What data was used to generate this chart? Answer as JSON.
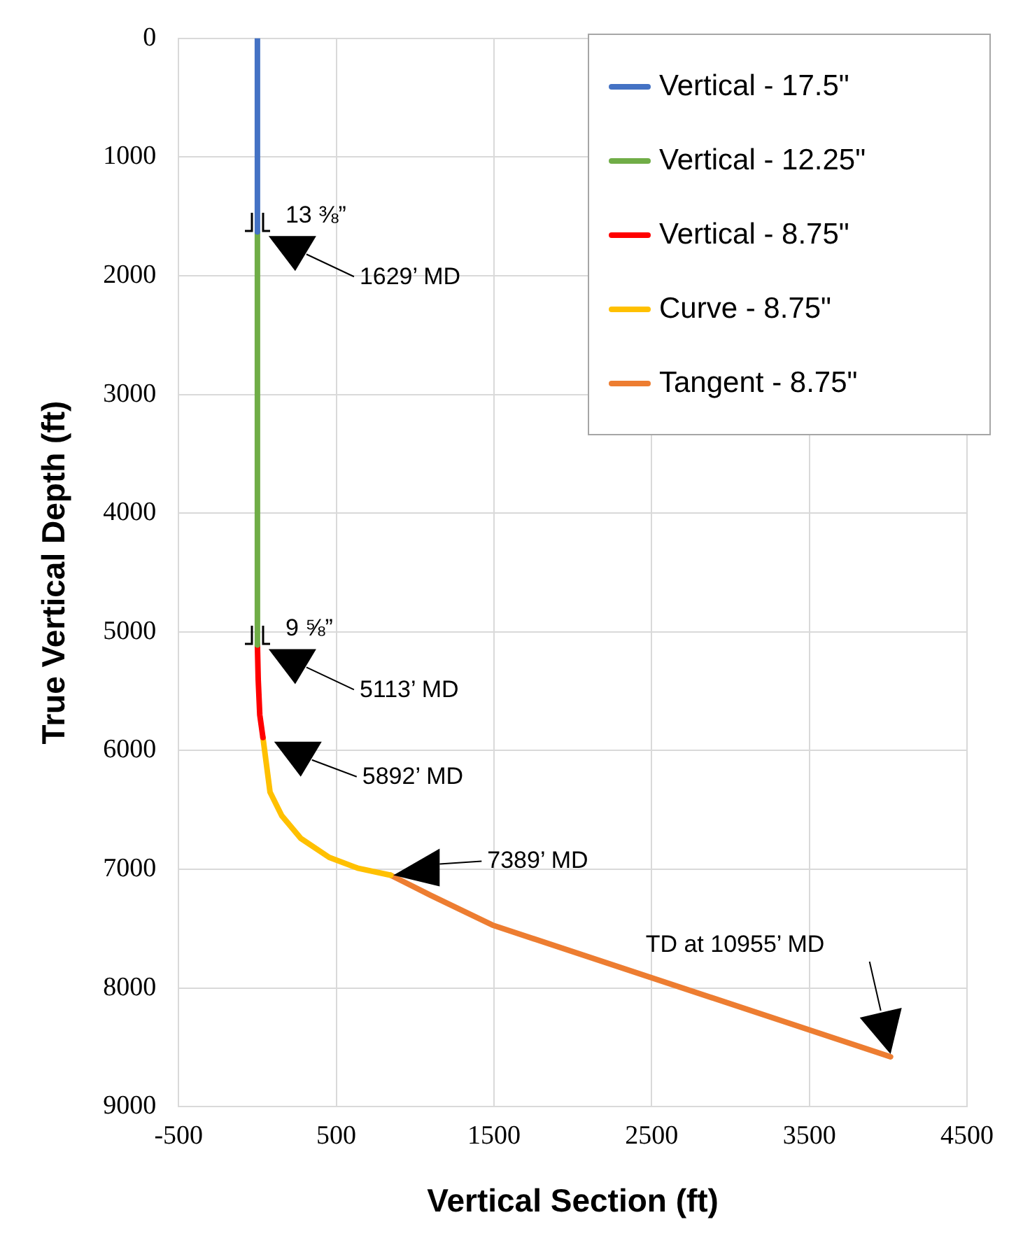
{
  "chart_data": {
    "type": "line",
    "xlabel": "Vertical Section (ft)",
    "ylabel": "True Vertical Depth (ft)",
    "xlim": [
      -500,
      4500
    ],
    "xticks": [
      -500,
      500,
      1500,
      2500,
      3500,
      4500
    ],
    "ylim": [
      9000,
      0
    ],
    "yticks": [
      0,
      1000,
      2000,
      3000,
      4000,
      5000,
      6000,
      7000,
      8000,
      9000
    ],
    "grid": true,
    "legend": "top right",
    "marker": "none",
    "line_style": "solid",
    "series": [
      {
        "name": "Vertical - 17.5\"",
        "color": "#4472c4",
        "x": [
          0,
          0
        ],
        "values": [
          0,
          1630
        ]
      },
      {
        "name": "Vertical - 12.25\"",
        "color": "#70ad47",
        "x": [
          0,
          0
        ],
        "values": [
          1630,
          5110
        ]
      },
      {
        "name": "Vertical - 8.75\"",
        "color": "#ff0000",
        "x": [
          0,
          5,
          15,
          35
        ],
        "values": [
          5110,
          5400,
          5700,
          5890
        ]
      },
      {
        "name": "Curve - 8.75\"",
        "color": "#ffc000",
        "x": [
          35,
          80,
          155,
          275,
          455,
          635,
          845
        ],
        "values": [
          5890,
          6350,
          6550,
          6740,
          6900,
          6990,
          7050
        ]
      },
      {
        "name": "Tangent - 8.75\"",
        "color": "#ed7d31",
        "x": [
          845,
          1100,
          1490,
          4015
        ],
        "values": [
          7050,
          7220,
          7470,
          8580
        ]
      }
    ],
    "annotations": [
      {
        "text": "13 ⅜”",
        "x": 0,
        "y": 1630
      },
      "1629’ MD",
      {
        "text": "9 ⅝”",
        "x": 0,
        "y": 5110
      },
      "5113’ MD",
      "5892’ MD",
      "7389’ MD",
      "TD at 10955’ MD"
    ]
  }
}
